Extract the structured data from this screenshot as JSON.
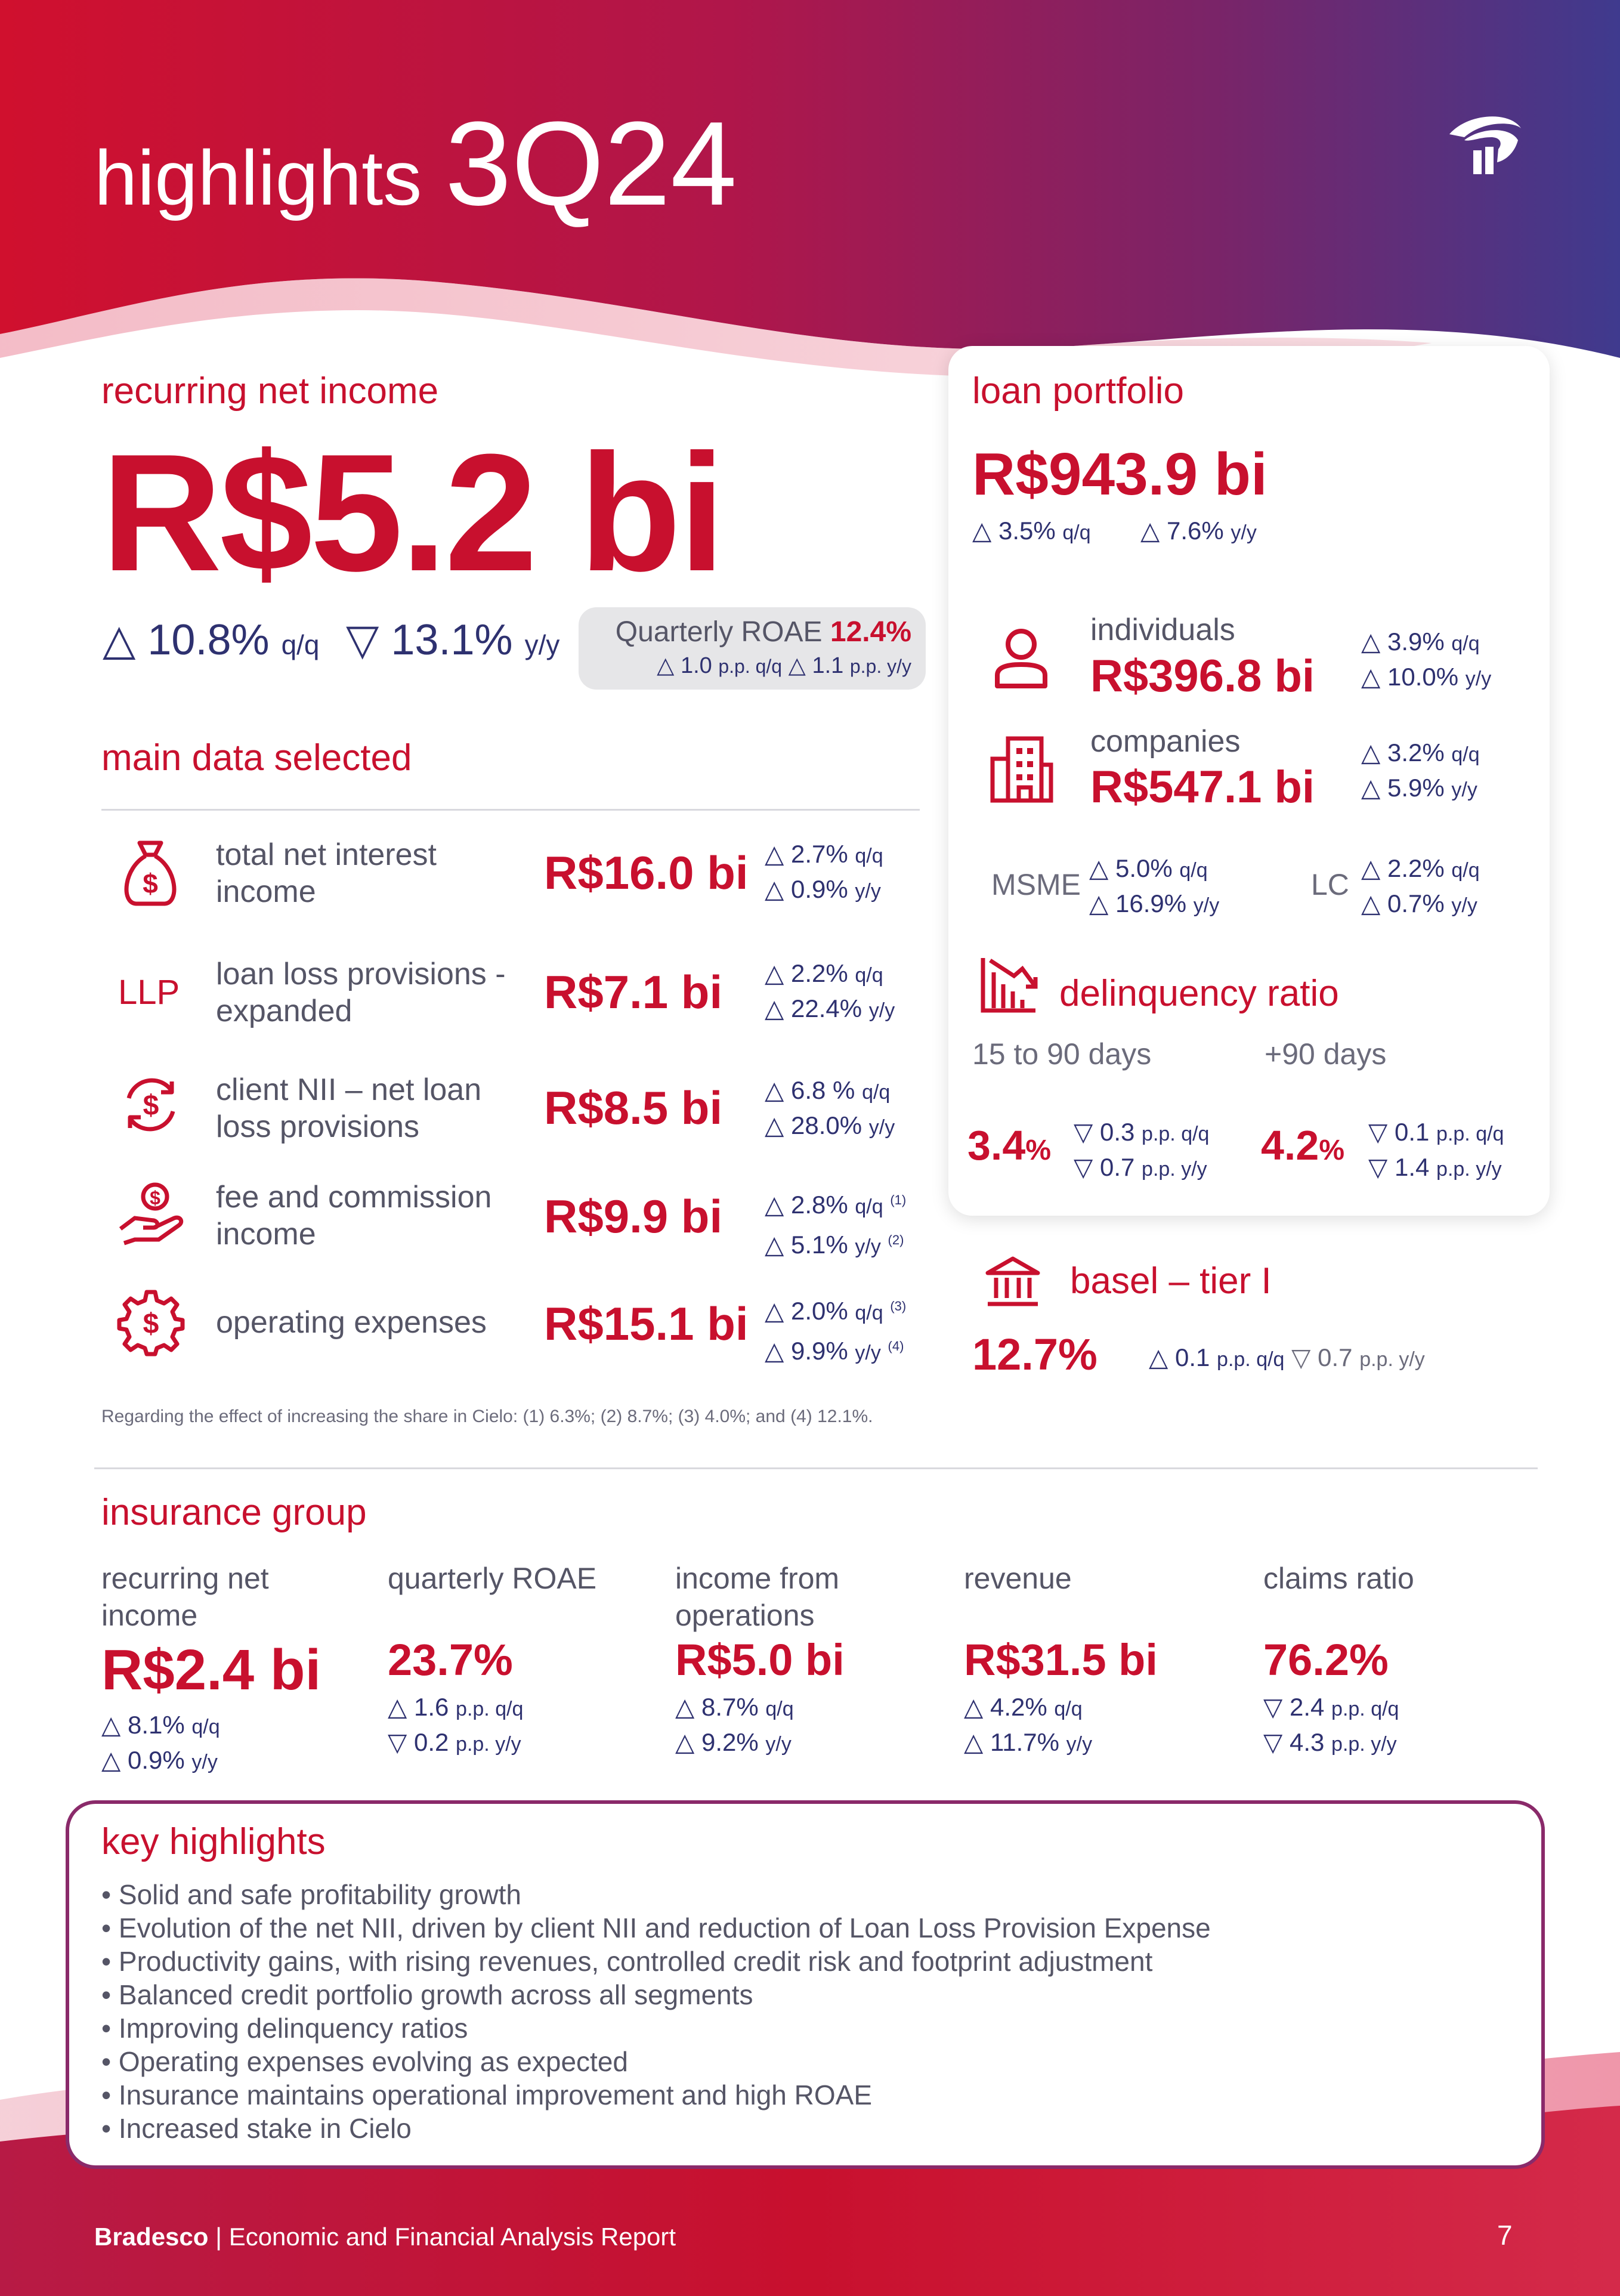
{
  "header": {
    "title_word": "highlights",
    "title_period": "3Q24",
    "logo_icon": "bradesco-logo-icon"
  },
  "recurring_net_income": {
    "title": "recurring net income",
    "value": "R$5.2 bi",
    "qq": "10.8%",
    "qq_unit": "q/q",
    "yy": "13.1%",
    "yy_unit": "y/y",
    "roae_label": "Quarterly ROAE",
    "roae_value": "12.4%",
    "roae_qq": "1.0",
    "roae_qq_unit": "p.p. q/q",
    "roae_yy": "1.1",
    "roae_yy_unit": "p.p. y/y"
  },
  "main_data": {
    "title": "main data selected",
    "rows": [
      {
        "label": "total net interest income",
        "value": "R$16.0 bi",
        "qq": "2.7%",
        "qq_unit": "q/q",
        "yy": "0.9%",
        "yy_unit": "y/y",
        "icon": "money-bag-icon"
      },
      {
        "label": "loan loss provisions - expanded",
        "value": "R$7.1 bi",
        "qq": "2.2%",
        "qq_unit": "q/q",
        "yy": "22.4%",
        "yy_unit": "y/y",
        "icon_text": "LLP"
      },
      {
        "label": "client NII – net loan loss provisions",
        "value": "R$8.5 bi",
        "qq": "6.8 %",
        "qq_unit": "q/q",
        "yy": "28.0%",
        "yy_unit": "y/y",
        "icon": "dollar-cycle-icon"
      },
      {
        "label": "fee and commission income",
        "value": "R$9.9 bi",
        "qq": "2.8%",
        "qq_unit": "q/q",
        "qq_note": "(1)",
        "yy": "5.1%",
        "yy_unit": "y/y",
        "yy_note": "(2)",
        "icon": "hand-coin-icon"
      },
      {
        "label": "operating expenses",
        "value": "R$15.1 bi",
        "qq": "2.0%",
        "qq_unit": "q/q",
        "qq_note": "(3)",
        "yy": "9.9%",
        "yy_unit": "y/y",
        "yy_note": "(4)",
        "icon": "gear-dollar-icon"
      }
    ],
    "footnote": "Regarding the effect of increasing the share in Cielo: (1) 6.3%; (2) 8.7%; (3) 4.0%; and (4) 12.1%."
  },
  "loan_portfolio": {
    "title": "loan portfolio",
    "value": "R$943.9 bi",
    "qq": "3.5%",
    "qq_unit": "q/q",
    "yy": "7.6%",
    "yy_unit": "y/y",
    "individuals": {
      "label": "individuals",
      "value": "R$396.8 bi",
      "qq": "3.9%",
      "qq_unit": "q/q",
      "yy": "10.0%",
      "yy_unit": "y/y"
    },
    "companies": {
      "label": "companies",
      "value": "R$547.1 bi",
      "qq": "3.2%",
      "qq_unit": "q/q",
      "yy": "5.9%",
      "yy_unit": "y/y"
    },
    "msme": {
      "label": "MSME",
      "qq": "5.0%",
      "qq_unit": "q/q",
      "yy": "16.9%",
      "yy_unit": "y/y"
    },
    "lc": {
      "label": "LC",
      "qq": "2.2%",
      "qq_unit": "q/q",
      "yy": "0.7%",
      "yy_unit": "y/y"
    }
  },
  "delinquency": {
    "title": "delinquency ratio",
    "short": {
      "label": "15 to 90 days",
      "value": "3.4",
      "unit": "%",
      "qq": "0.3",
      "qq_unit": "p.p. q/q",
      "yy": "0.7",
      "yy_unit": "p.p. y/y"
    },
    "long": {
      "label": "+90 days",
      "value": "4.2",
      "unit": "%",
      "qq": "0.1",
      "qq_unit": "p.p. q/q",
      "yy": "1.4",
      "yy_unit": "p.p. y/y"
    }
  },
  "basel": {
    "title": "basel – tier I",
    "value": "12.7%",
    "qq": "0.1",
    "qq_unit": "p.p. q/q",
    "yy": "0.7",
    "yy_unit": "p.p. y/y"
  },
  "insurance": {
    "title": "insurance group",
    "items": [
      {
        "label": "recurring net income",
        "value": "R$2.4 bi",
        "qq": "8.1%",
        "qq_unit": "q/q",
        "yy": "0.9%",
        "yy_unit": "y/y"
      },
      {
        "label": "quarterly ROAE",
        "value": "23.7%",
        "qq": "1.6",
        "qq_unit": "p.p. q/q",
        "yy": "0.2",
        "yy_unit": "p.p. y/y"
      },
      {
        "label": "income from operations",
        "value": "R$5.0 bi",
        "qq": "8.7%",
        "qq_unit": "q/q",
        "yy": "9.2%",
        "yy_unit": "y/y"
      },
      {
        "label": "revenue",
        "value": "R$31.5 bi",
        "qq": "4.2%",
        "qq_unit": "q/q",
        "yy": "11.7%",
        "yy_unit": "y/y"
      },
      {
        "label": "claims ratio",
        "value": "76.2%",
        "qq": "2.4",
        "qq_unit": "p.p. q/q",
        "yy": "4.3",
        "yy_unit": "p.p. y/y"
      }
    ]
  },
  "key_highlights": {
    "title": "key highlights",
    "items": [
      "Solid and safe profitability growth",
      "Evolution of the net NII, driven by client NII and reduction of Loan Loss Provision Expense",
      "Productivity gains, with rising revenues, controlled credit risk and footprint adjustment",
      "Balanced credit portfolio growth across all segments",
      "Improving delinquency ratios",
      "Operating expenses evolving as expected",
      "Insurance maintains operational improvement and high ROAE",
      "Increased stake in Cielo"
    ]
  },
  "footer": {
    "brand": "Bradesco",
    "separator": "|",
    "report": "Economic and Financial Analysis Report",
    "page": "7"
  },
  "colors": {
    "brand_red": "#c8102e",
    "navy": "#2e3170",
    "purple": "#5a3a8a"
  }
}
